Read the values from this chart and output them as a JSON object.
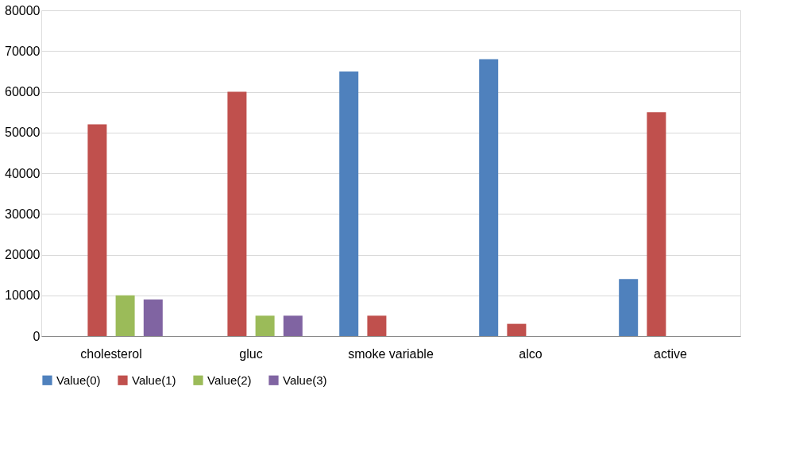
{
  "chart_data": {
    "type": "bar",
    "categories": [
      "cholesterol",
      "gluc",
      "smoke variable",
      "alco",
      "active"
    ],
    "series": [
      {
        "name": "Value(0)",
        "color": "#4f81bd",
        "values": [
          null,
          null,
          65000,
          68000,
          14000
        ]
      },
      {
        "name": "Value(1)",
        "color": "#c0504d",
        "values": [
          52000,
          60000,
          5000,
          3000,
          55000
        ]
      },
      {
        "name": "Value(2)",
        "color": "#9bbb59",
        "values": [
          10000,
          5000,
          null,
          null,
          null
        ]
      },
      {
        "name": "Value(3)",
        "color": "#8064a2",
        "values": [
          9000,
          5000,
          null,
          null,
          null
        ]
      }
    ],
    "ylim": [
      0,
      80000
    ],
    "yticks": [
      0,
      10000,
      20000,
      30000,
      40000,
      50000,
      60000,
      70000,
      80000
    ],
    "grid": "y",
    "legend": "bottom"
  }
}
